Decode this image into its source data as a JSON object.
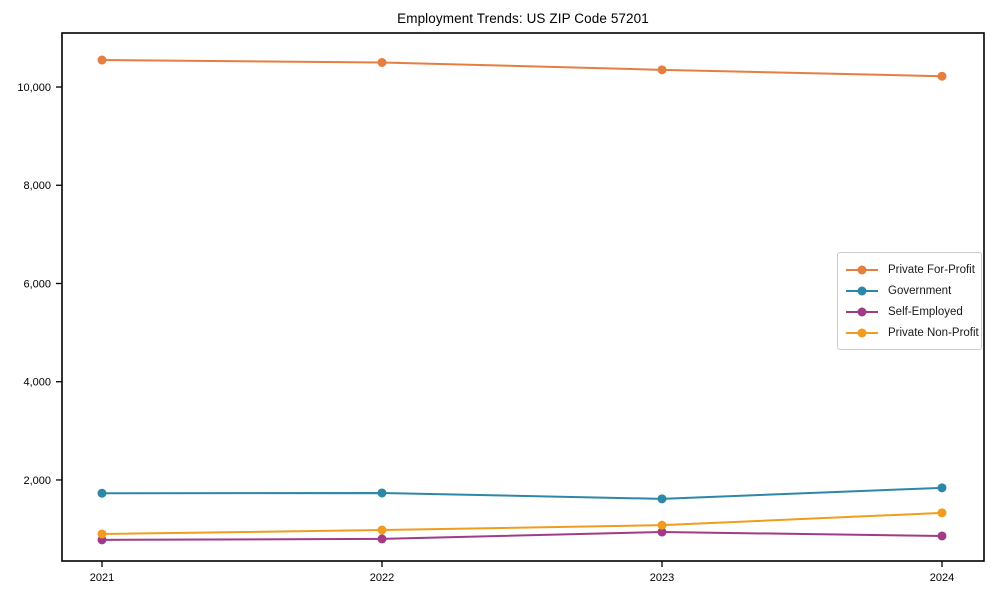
{
  "title": "Employment Trends: US ZIP Code 57201",
  "chart_data": {
    "type": "line",
    "x": [
      2021,
      2022,
      2023,
      2024
    ],
    "x_labels": [
      "2021",
      "2022",
      "2023",
      "2024"
    ],
    "series": [
      {
        "name": "Private For-Profit",
        "color": "#e67e3f",
        "values": [
          10550,
          10500,
          10350,
          10220
        ]
      },
      {
        "name": "Government",
        "color": "#2e87a7",
        "values": [
          1730,
          1735,
          1615,
          1840
        ]
      },
      {
        "name": "Self-Employed",
        "color": "#a23b87",
        "values": [
          780,
          800,
          940,
          860
        ]
      },
      {
        "name": "Private Non-Profit",
        "color": "#f09d1f",
        "values": [
          900,
          980,
          1080,
          1330
        ]
      }
    ],
    "ylim": [
      350,
      11100
    ],
    "yticks": {
      "values": [
        2000,
        4000,
        6000,
        8000,
        10000
      ],
      "labels": [
        "2,000",
        "4,000",
        "6,000",
        "8,000",
        "10,000"
      ]
    },
    "xlabel": "",
    "ylabel": "",
    "grid": false,
    "legend": {
      "position": "center-right",
      "items": [
        "Private For-Profit",
        "Government",
        "Self-Employed",
        "Private Non-Profit"
      ]
    },
    "frame_color": "#000000",
    "background": "#ffffff"
  }
}
